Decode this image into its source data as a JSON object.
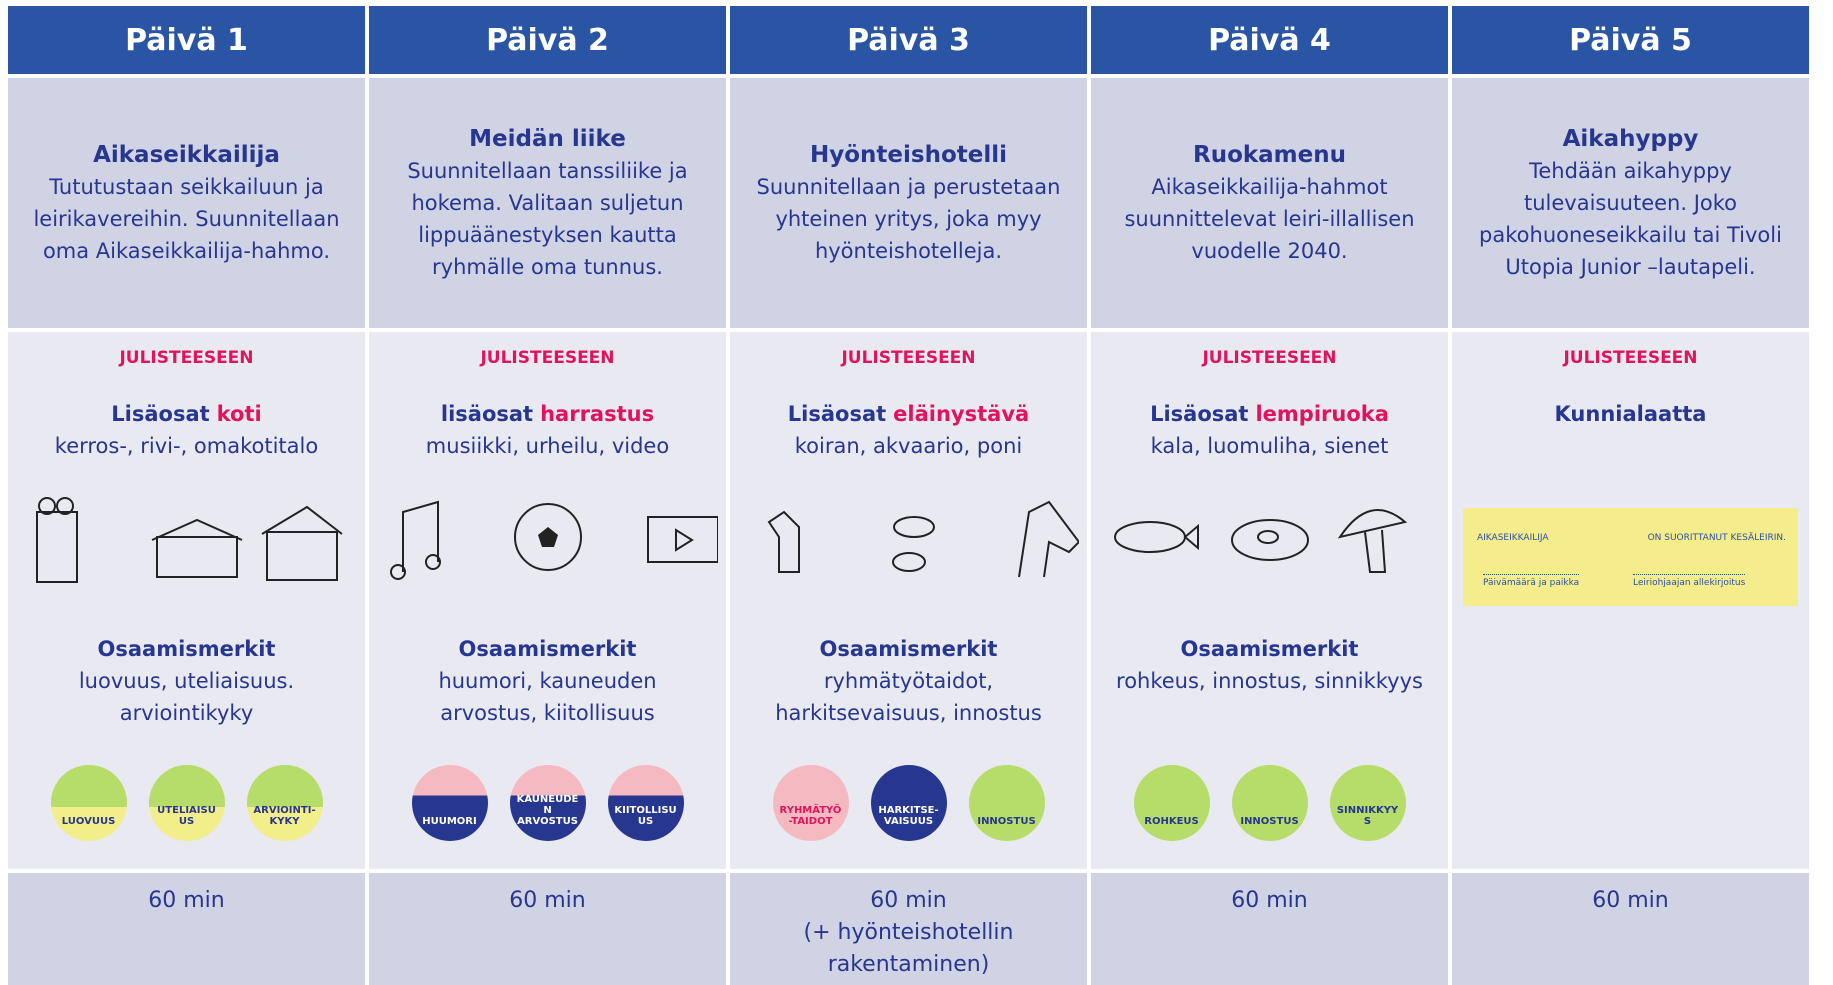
{
  "days": [
    {
      "header": "Päivä 1",
      "title": "Aikaseikkailija",
      "description": "Tututustaan seikkailuun ja leirikavereihin. Suunnitellaan oma Aikaseikkailija-hahmo.",
      "poster_label": "JULISTEESEEN",
      "extras_prefix": "Lisäosat",
      "extras_highlight": "koti",
      "extras_items": "kerros-, rivi-, omakotitalo",
      "badges_title": "Osaamismerkit",
      "badges_items": "luovuus, uteliaisuus. arviointikyky",
      "badges": [
        "LUOVUUS",
        "UTELIAISUUS",
        "ARVIOINTI-KYKY"
      ],
      "duration": "60 min"
    },
    {
      "header": "Päivä 2",
      "title": "Meidän liike",
      "description": "Suunnitellaan tanssiliike ja hokema. Valitaan suljetun lippuäänestyksen kautta ryhmälle oma tunnus.",
      "poster_label": "JULISTEESEEN",
      "extras_prefix": "lisäosat",
      "extras_highlight": "harrastus",
      "extras_items": "musiikki, urheilu, video",
      "badges_title": "Osaamismerkit",
      "badges_items": "huumori, kauneuden arvostus, kiitollisuus",
      "badges": [
        "HUUMORI",
        "KAUNEUDEN ARVOSTUS",
        "KIITOLLISUUS"
      ],
      "duration": "60 min"
    },
    {
      "header": "Päivä 3",
      "title": "Hyönteishotelli",
      "description": "Suunnitellaan ja perustetaan yhteinen yritys, joka myy hyönteishotelleja.",
      "poster_label": "JULISTEESEEN",
      "extras_prefix": "Lisäosat",
      "extras_highlight": "eläinystävä",
      "extras_items": "koiran, akvaario, poni",
      "badges_title": "Osaamismerkit",
      "badges_items": "ryhmätyötaidot, harkitsevaisuus, innostus",
      "badges": [
        "RYHMÄTYÖ-TAIDOT",
        "HARKITSE-VAISUUS",
        "INNOSTUS"
      ],
      "duration": "60 min",
      "duration_note": "(+ hyönteishotellin rakentaminen)"
    },
    {
      "header": "Päivä 4",
      "title": "Ruokamenu",
      "description": "Aikaseikkailija-hahmot suunnittelevat leiri-illallisen vuodelle 2040.",
      "poster_label": "JULISTEESEEN",
      "extras_prefix": "Lisäosat",
      "extras_highlight": "lempiruoka",
      "extras_items": "kala, luomuliha, sienet",
      "badges_title": "Osaamismerkit",
      "badges_items": "rohkeus, innostus, sinnikkyys",
      "badges": [
        "ROHKEUS",
        "INNOSTUS",
        "SINNIKKYYS"
      ],
      "duration": "60 min"
    },
    {
      "header": "Päivä 5",
      "title": "Aikahyppy",
      "description": "Tehdään aikahyppy tulevaisuuteen. Joko pakohuoneseikkailu tai Tivoli Utopia Junior –lautapeli.",
      "poster_label": "JULISTEESEEN",
      "extras_prefix": "Kunnialaatta",
      "certificate": {
        "name_line": "AIKASEIKKAILIJA",
        "completed": "ON SUORITTANUT KESÄLEIRIN.",
        "date_place": "Päivämäärä ja paikka",
        "signature": "Leiriohjaajan allekirjoitus"
      },
      "duration": "60 min"
    }
  ]
}
